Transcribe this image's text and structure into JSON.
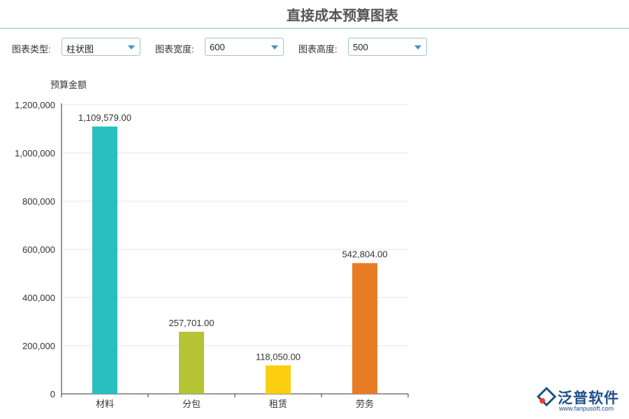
{
  "header": {
    "title": "直接成本预算图表"
  },
  "controls": {
    "chart_type_label": "图表类型:",
    "chart_type_value": "柱状图",
    "width_label": "图表宽度:",
    "width_value": "600",
    "height_label": "图表高度:",
    "height_value": "500"
  },
  "logo": {
    "name": "泛普软件",
    "url": "www.fanpusoft.com"
  },
  "chart_data": {
    "type": "bar",
    "title": "",
    "ylabel": "预算金额",
    "xlabel": "",
    "categories": [
      "材料",
      "分包",
      "租赁",
      "劳务"
    ],
    "values": [
      1109579.0,
      257701.0,
      118050.0,
      542804.0
    ],
    "value_labels": [
      "1,109,579.00",
      "257,701.00",
      "118,050.00",
      "542,804.00"
    ],
    "colors": [
      "#27bfbf",
      "#b5c334",
      "#fcce10",
      "#e87c25"
    ],
    "ylim": [
      0,
      1200000
    ],
    "yticks": [
      0,
      200000,
      400000,
      600000,
      800000,
      1000000,
      1200000
    ],
    "ytick_labels": [
      "0",
      "200,000",
      "400,000",
      "600,000",
      "800,000",
      "1,000,000",
      "1,200,000"
    ],
    "grid": true,
    "legend": "none"
  }
}
